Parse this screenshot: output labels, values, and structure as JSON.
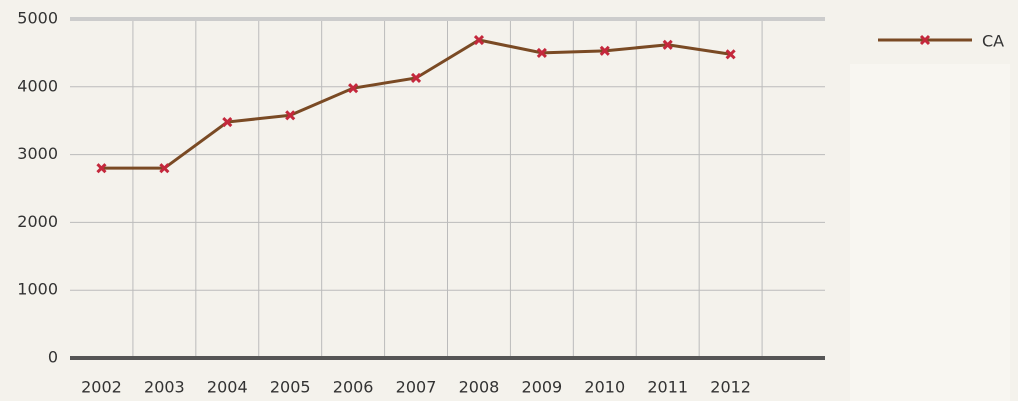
{
  "chart_data": {
    "type": "line",
    "categories": [
      "2002",
      "2003",
      "2004",
      "2005",
      "2006",
      "2007",
      "2008",
      "2009",
      "2010",
      "2011",
      "2012",
      null
    ],
    "series": [
      {
        "name": "CA",
        "color": "#7a4a24",
        "marker_color": "#c4283c",
        "values": [
          2800,
          2800,
          3480,
          3580,
          3980,
          4130,
          4690,
          4500,
          4530,
          4620,
          4480,
          null
        ]
      }
    ],
    "ylim": [
      0,
      5000
    ],
    "yticks": [
      0,
      1000,
      2000,
      3000,
      4000,
      5000
    ],
    "grid": true,
    "legend": "top-right"
  }
}
